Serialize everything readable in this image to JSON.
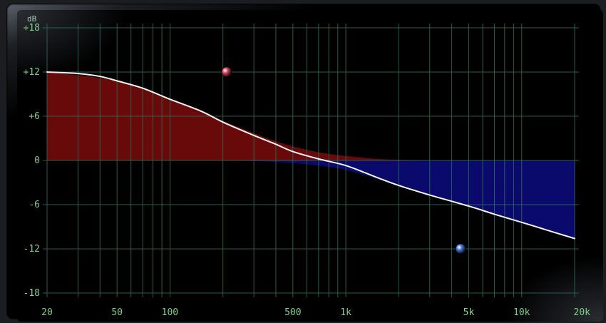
{
  "eq": {
    "unit_label": "dB",
    "db_ticks": [
      {
        "value": 18,
        "label": "+18"
      },
      {
        "value": 12,
        "label": "+12"
      },
      {
        "value": 6,
        "label": "+6"
      },
      {
        "value": 0,
        "label": "0"
      },
      {
        "value": -6,
        "label": "-6"
      },
      {
        "value": -12,
        "label": "-12"
      },
      {
        "value": -18,
        "label": "-18"
      }
    ],
    "freq_labels": [
      {
        "hz": 20,
        "label": "20"
      },
      {
        "hz": 50,
        "label": "50"
      },
      {
        "hz": 100,
        "label": "100"
      },
      {
        "hz": 500,
        "label": "500"
      },
      {
        "hz": 1000,
        "label": "1k"
      },
      {
        "hz": 5000,
        "label": "5k"
      },
      {
        "hz": 10000,
        "label": "10k"
      },
      {
        "hz": 20000,
        "label": "20k"
      }
    ],
    "freq_range": [
      20,
      20000
    ],
    "db_range": [
      -18,
      18
    ],
    "colors": {
      "grid": "#2f6b5a",
      "boost_fill": "#6e0b0b",
      "cut_fill": "#0b0b73",
      "curve": "#f2f2f2",
      "low_handle": "#d8334f",
      "high_handle": "#3b6fd8"
    },
    "bands": [
      {
        "name": "low-shelf",
        "freq_hz": 210,
        "gain_db": 12,
        "handle_color": "low_handle"
      },
      {
        "name": "high-shelf",
        "freq_hz": 4500,
        "gain_db": -12,
        "handle_color": "high_handle"
      }
    ],
    "curve_points": [
      [
        20,
        12.0
      ],
      [
        30,
        11.8
      ],
      [
        40,
        11.4
      ],
      [
        50,
        10.8
      ],
      [
        70,
        9.8
      ],
      [
        100,
        8.3
      ],
      [
        150,
        6.7
      ],
      [
        200,
        5.2
      ],
      [
        300,
        3.4
      ],
      [
        400,
        2.2
      ],
      [
        500,
        1.2
      ],
      [
        700,
        0.2
      ],
      [
        1000,
        -0.7
      ],
      [
        1500,
        -2.3
      ],
      [
        2000,
        -3.4
      ],
      [
        3000,
        -4.7
      ],
      [
        5000,
        -6.2
      ],
      [
        7000,
        -7.3
      ],
      [
        10000,
        -8.4
      ],
      [
        15000,
        -9.7
      ],
      [
        20000,
        -10.6
      ]
    ],
    "boost_component": [
      [
        20,
        12.0
      ],
      [
        50,
        10.8
      ],
      [
        100,
        8.4
      ],
      [
        150,
        6.8
      ],
      [
        200,
        5.4
      ],
      [
        300,
        3.7
      ],
      [
        400,
        2.6
      ],
      [
        500,
        1.9
      ],
      [
        700,
        1.1
      ],
      [
        1000,
        0.6
      ],
      [
        1500,
        0.2
      ],
      [
        2000,
        0.1
      ],
      [
        3000,
        0.0
      ]
    ],
    "cut_component": [
      [
        200,
        0.0
      ],
      [
        400,
        -0.2
      ],
      [
        700,
        -0.7
      ],
      [
        1000,
        -1.3
      ],
      [
        1500,
        -2.5
      ],
      [
        2000,
        -3.5
      ],
      [
        3000,
        -4.8
      ],
      [
        5000,
        -6.2
      ],
      [
        7000,
        -7.3
      ],
      [
        10000,
        -8.4
      ],
      [
        15000,
        -9.7
      ],
      [
        20000,
        -10.6
      ]
    ]
  }
}
